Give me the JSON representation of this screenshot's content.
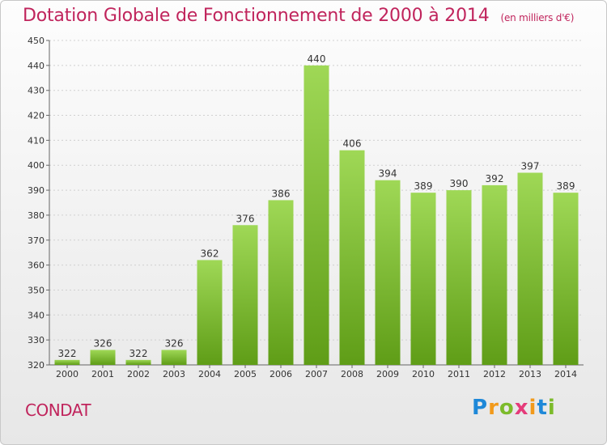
{
  "title": "Dotation Globale de Fonctionnement de 2000 à 2014",
  "unit": "(en milliers d'€)",
  "commune": "CONDAT",
  "logo": {
    "letters": [
      "P",
      "r",
      "o",
      "x",
      "i",
      "t",
      "i"
    ],
    "colors": [
      "#1e88d8",
      "#f29a1b",
      "#7cbb2b",
      "#e53b7a",
      "#f29a1b",
      "#1e88d8",
      "#7cbb2b"
    ]
  },
  "colors": {
    "bar_top": "#9fd856",
    "bar_bottom": "#5f9d17",
    "title": "#c0245c",
    "grid": "#d0d0d0"
  },
  "chart_data": {
    "type": "bar",
    "categories": [
      "2000",
      "2001",
      "2002",
      "2003",
      "2004",
      "2005",
      "2006",
      "2007",
      "2008",
      "2009",
      "2010",
      "2011",
      "2012",
      "2013",
      "2014"
    ],
    "values": [
      322,
      326,
      322,
      326,
      362,
      376,
      386,
      440,
      406,
      394,
      389,
      390,
      392,
      397,
      389
    ],
    "ylim": [
      320,
      450
    ],
    "yticks": [
      320,
      330,
      340,
      350,
      360,
      370,
      380,
      390,
      400,
      410,
      420,
      430,
      440,
      450
    ],
    "grid": true,
    "xlabel": "",
    "ylabel": ""
  }
}
